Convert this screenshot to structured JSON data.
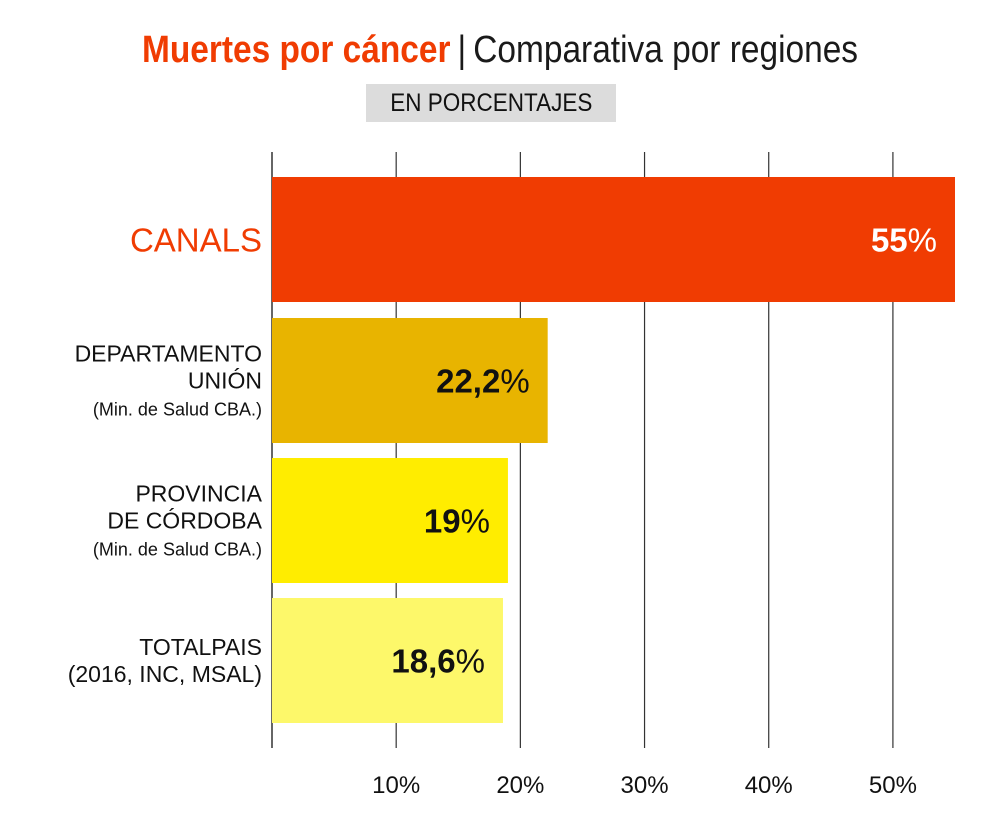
{
  "header": {
    "title_accent": "Muertes por cáncer",
    "title_separator": "|",
    "title_rest": "Comparativa por regiones",
    "subtitle_badge": "EN PORCENTAJES"
  },
  "colors": {
    "accent": "#f03c02",
    "bar_1": "#f03c02",
    "bar_2": "#e8b400",
    "bar_3": "#ffed00",
    "bar_4": "#fdf86a",
    "grid": "#333333"
  },
  "chart_data": {
    "type": "bar",
    "orientation": "horizontal",
    "title": "Muertes por cáncer | Comparativa por regiones",
    "subtitle": "EN PORCENTAJES",
    "categories": [
      {
        "lines": [
          "CANALS"
        ],
        "note": ""
      },
      {
        "lines": [
          "DEPARTAMENTO",
          "UNIÓN"
        ],
        "note": "(Min. de Salud CBA.)"
      },
      {
        "lines": [
          "PROVINCIA",
          "DE CÓRDOBA"
        ],
        "note": "(Min. de Salud CBA.)"
      },
      {
        "lines": [
          "TOTALPAIS",
          "(2016, INC, MSAL)"
        ],
        "note": ""
      }
    ],
    "values": [
      55,
      22.2,
      19,
      18.6
    ],
    "value_labels": [
      "55",
      "22,2",
      "19",
      "18,6"
    ],
    "value_suffix": "%",
    "xlim": [
      0,
      55
    ],
    "xticks": [
      10,
      20,
      30,
      40,
      50
    ],
    "xtick_labels": [
      "10%",
      "20%",
      "30%",
      "40%",
      "50%"
    ],
    "grid": true,
    "legend": "none"
  }
}
